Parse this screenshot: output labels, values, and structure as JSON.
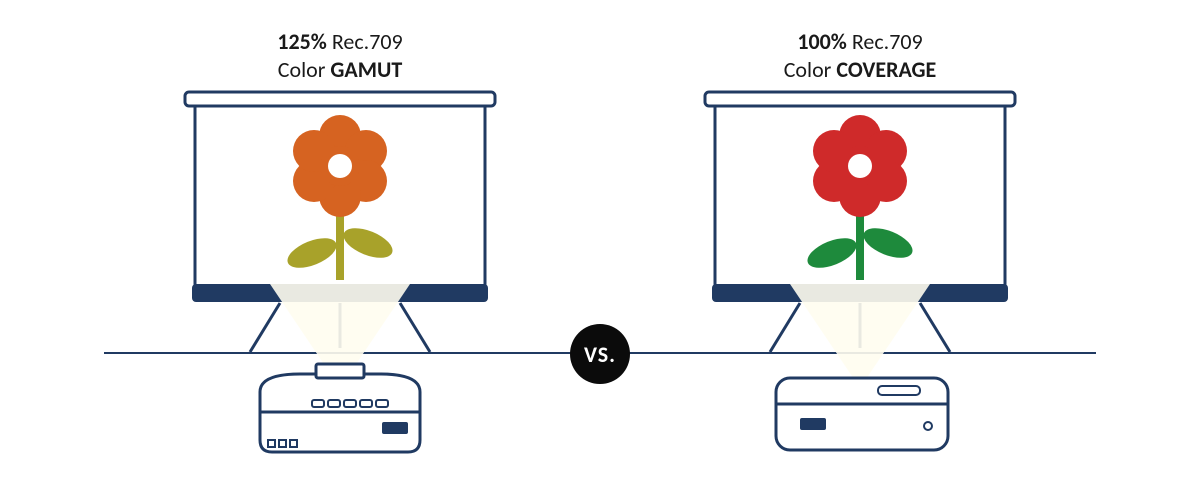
{
  "colors": {
    "stroke": "#203a62",
    "stroke_width": 3,
    "background": "#ffffff",
    "light_fill": "#fffdf0",
    "vs_bg": "#0b0b0b",
    "vs_text": "#ffffff"
  },
  "vs_label": "VS.",
  "left": {
    "title_percent": "125%",
    "title_spec": " Rec.709",
    "title_line2_pre": "Color ",
    "title_line2_bold": "GAMUT",
    "flower_petal_color": "#d66321",
    "flower_stem_color": "#a8a22a",
    "flower_leaf_color": "#a8a22a"
  },
  "right": {
    "title_percent": "100%",
    "title_spec": " Rec.709",
    "title_line2_pre": "Color ",
    "title_line2_bold": "COVERAGE",
    "flower_petal_color": "#cf2a2a",
    "flower_stem_color": "#1e8a3c",
    "flower_leaf_color": "#1e8a3c"
  }
}
